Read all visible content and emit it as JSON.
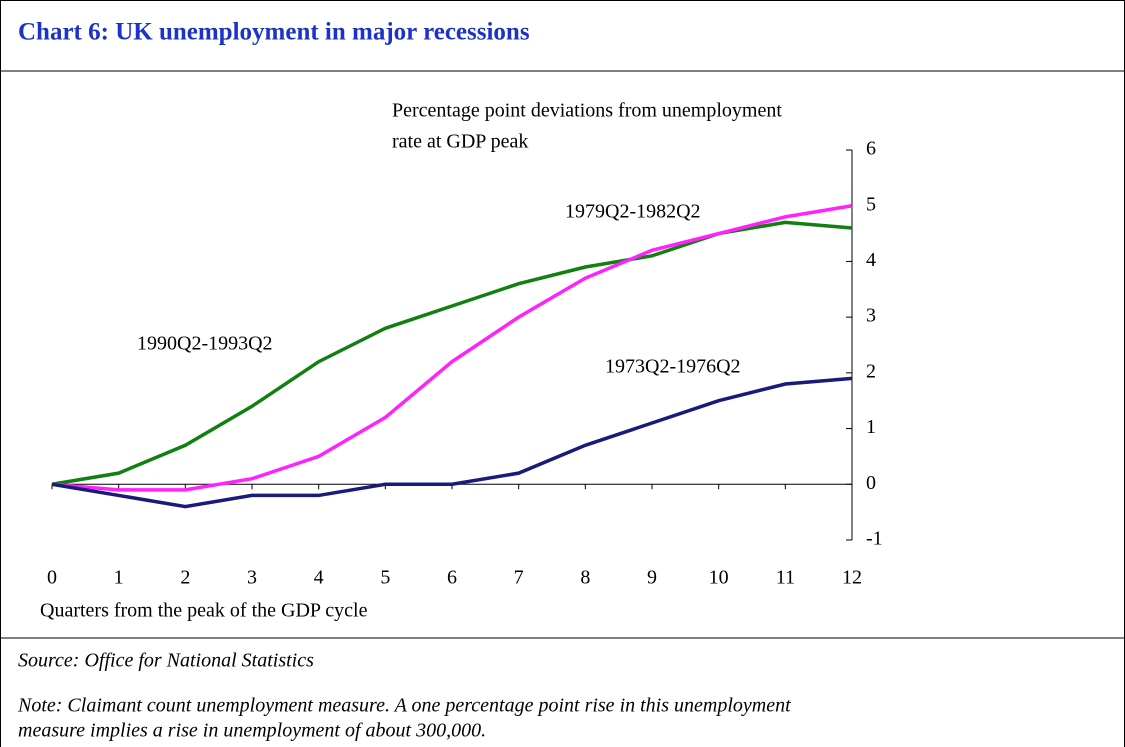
{
  "chart_data": {
    "type": "line",
    "title": "Chart 6: UK unemployment in major recessions",
    "y_label_lines": [
      "Percentage point deviations from unemployment",
      "rate at GDP peak"
    ],
    "x_label": "Quarters from the peak of the GDP cycle",
    "x": [
      0,
      1,
      2,
      3,
      4,
      5,
      6,
      7,
      8,
      9,
      10,
      11,
      12
    ],
    "xlim": [
      0,
      12
    ],
    "xticks": [
      0,
      1,
      2,
      3,
      4,
      5,
      6,
      7,
      8,
      9,
      10,
      11,
      12
    ],
    "ylim": [
      -1,
      6
    ],
    "yticks": [
      -1,
      0,
      1,
      2,
      3,
      4,
      5,
      6
    ],
    "series": [
      {
        "name": "1990Q2-1993Q2",
        "color": "#118011",
        "values": [
          0,
          0.2,
          0.7,
          1.4,
          2.2,
          2.8,
          3.2,
          3.6,
          3.9,
          4.1,
          4.5,
          4.7,
          4.6
        ]
      },
      {
        "name": "1979Q2-1982Q2",
        "color": "#ff22ff",
        "values": [
          0,
          -0.1,
          -0.1,
          0.1,
          0.5,
          1.2,
          2.2,
          3.0,
          3.7,
          4.2,
          4.5,
          4.8,
          5.0
        ]
      },
      {
        "name": "1973Q2-1976Q2",
        "color": "#1a1a7a",
        "values": [
          0,
          -0.2,
          -0.4,
          -0.2,
          -0.2,
          0,
          0,
          0.2,
          0.7,
          1.1,
          1.5,
          1.8,
          1.9
        ]
      }
    ],
    "source": "Source: Office for National Statistics",
    "note_lines": [
      "Note: Claimant count unemployment measure. A one percentage point rise in this unemployment",
      "measure implies a rise in unemployment of about 300,000."
    ]
  }
}
